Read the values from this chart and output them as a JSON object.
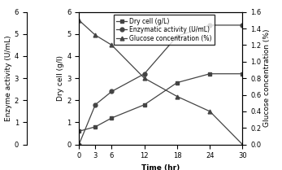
{
  "time": [
    0,
    3,
    6,
    12,
    18,
    24,
    30
  ],
  "dry_cell": [
    0.6,
    0.8,
    1.2,
    1.8,
    2.8,
    3.2,
    3.2
  ],
  "dry_cell_label": "Dry cell (g/L)",
  "dry_cell_marker": "s",
  "enzyme": [
    0.0,
    1.8,
    2.4,
    3.2,
    4.9,
    5.4,
    5.4
  ],
  "enzyme_label": "Enzymatic activity (U/mL)",
  "enzyme_marker": "o",
  "glucose": [
    1.5,
    1.32,
    1.2,
    0.8,
    0.58,
    0.4,
    0.0
  ],
  "glucose_label": "Glucose concentration (%)",
  "glucose_marker": "^",
  "xlabel": "Time (hr)",
  "ylabel_enzyme": "Enzyme activity (U/mL)",
  "ylabel_dry": "Dry cell (g/l)",
  "ylabel_right": "Glucose concentration (%)",
  "xlim": [
    0,
    30
  ],
  "ylim_left": [
    0,
    6
  ],
  "ylim_right": [
    0,
    1.6
  ],
  "xticks": [
    0,
    3,
    6,
    12,
    18,
    24,
    30
  ],
  "yticks_left": [
    0,
    1,
    2,
    3,
    4,
    5,
    6
  ],
  "yticks_right": [
    0,
    0.2,
    0.4,
    0.6,
    0.8,
    1.0,
    1.2,
    1.4,
    1.6
  ],
  "line_color": "#444444",
  "bg_color": "#ffffff",
  "fontsize": 6.5,
  "legend_fontsize": 5.5,
  "tick_fontsize": 6
}
